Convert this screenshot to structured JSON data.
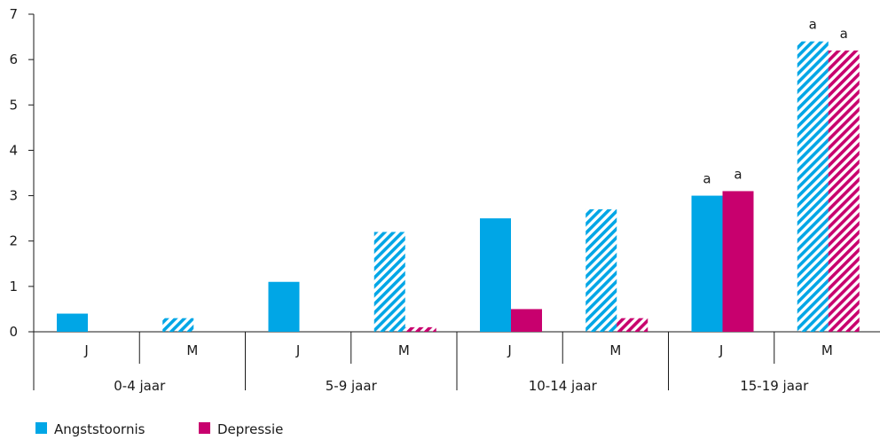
{
  "colors": {
    "angst": "#00a6e6",
    "depressie": "#c8006e",
    "axis": "#1a1a1a"
  },
  "chart_data": {
    "type": "bar",
    "ylim": [
      0,
      7
    ],
    "yticks": [
      "0",
      "1",
      "2",
      "3",
      "4",
      "5",
      "6",
      "7"
    ],
    "groups": [
      "0-4 jaar",
      "5-9 jaar",
      "10-14 jaar",
      "15-19 jaar"
    ],
    "subcategories": [
      "J",
      "M"
    ],
    "series": [
      {
        "name": "Angststoornis",
        "values": [
          0.4,
          0.3,
          1.1,
          2.2,
          2.5,
          2.7,
          3.0,
          6.4
        ]
      },
      {
        "name": "Depressie",
        "values": [
          0,
          0,
          0,
          0.1,
          0.5,
          0.3,
          3.1,
          6.2
        ]
      }
    ],
    "hatched": [
      "J: solid",
      "M: hatched"
    ],
    "annotations": [
      {
        "series": 0,
        "index": 6,
        "text": "a"
      },
      {
        "series": 1,
        "index": 6,
        "text": "a"
      },
      {
        "series": 0,
        "index": 7,
        "text": "a"
      },
      {
        "series": 1,
        "index": 7,
        "text": "a"
      }
    ],
    "legend_position": "bottom-left"
  }
}
